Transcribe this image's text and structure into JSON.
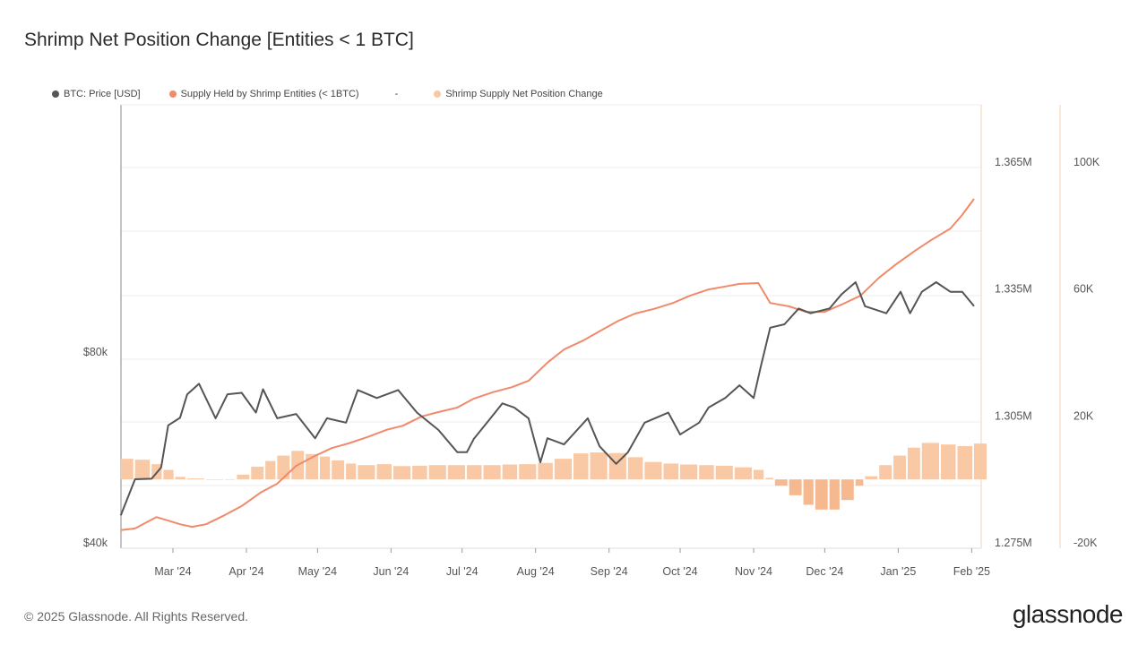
{
  "title": "Shrimp Net Position Change [Entities < 1 BTC]",
  "footer": "© 2025 Glassnode. All Rights Reserved.",
  "logo": "glassnode",
  "legend": [
    {
      "label": "BTC: Price [USD]",
      "color": "#555555"
    },
    {
      "label": "Supply Held by Shrimp Entities (< 1BTC)",
      "color": "#f08a6b"
    },
    {
      "label": "-",
      "color": ""
    },
    {
      "label": "Shrimp Supply Net Position Change",
      "color": "#f9c9a5"
    }
  ],
  "chart_data": {
    "type": "line",
    "title": "Shrimp Net Position Change [Entities < 1 BTC]",
    "x_ticks": [
      "Mar '24",
      "Apr '24",
      "May '24",
      "Jun '24",
      "Jul '24",
      "Aug '24",
      "Sep '24",
      "Oct '24",
      "Nov '24",
      "Dec '24",
      "Jan '25",
      "Feb '25"
    ],
    "x_tick_dates": [
      "2024-03-01",
      "2024-04-01",
      "2024-05-01",
      "2024-06-01",
      "2024-07-01",
      "2024-08-01",
      "2024-09-01",
      "2024-10-01",
      "2024-11-01",
      "2024-12-01",
      "2025-01-01",
      "2025-02-01"
    ],
    "xlim": [
      "2024-02-08",
      "2025-02-06"
    ],
    "grid": true,
    "legend_position": "top-left",
    "axes": {
      "price": {
        "side": "left",
        "scale": "log",
        "ticks": [
          "$40k",
          "$80k"
        ],
        "tick_values": [
          40000,
          80000
        ]
      },
      "supply": {
        "side": "right",
        "ticks": [
          "1.275M",
          "1.305M",
          "1.335M",
          "1.365M"
        ],
        "tick_values": [
          1275000,
          1305000,
          1335000,
          1365000
        ]
      },
      "net": {
        "side": "right-outer",
        "ticks": [
          "-20K",
          "20K",
          "60K",
          "100K"
        ],
        "tick_values": [
          -20000,
          20000,
          60000,
          100000
        ]
      }
    },
    "series": [
      {
        "name": "BTC: Price [USD]",
        "type": "line",
        "axis": "price",
        "color": "#555555",
        "points": [
          [
            "2024-02-08",
            44200
          ],
          [
            "2024-02-14",
            50400
          ],
          [
            "2024-02-21",
            50500
          ],
          [
            "2024-02-25",
            52600
          ],
          [
            "2024-02-28",
            61300
          ],
          [
            "2024-03-04",
            63000
          ],
          [
            "2024-03-07",
            68600
          ],
          [
            "2024-03-12",
            71300
          ],
          [
            "2024-03-19",
            62900
          ],
          [
            "2024-03-24",
            68600
          ],
          [
            "2024-03-30",
            69000
          ],
          [
            "2024-04-05",
            64200
          ],
          [
            "2024-04-08",
            69900
          ],
          [
            "2024-04-14",
            62900
          ],
          [
            "2024-04-22",
            63900
          ],
          [
            "2024-04-30",
            58500
          ],
          [
            "2024-05-05",
            62900
          ],
          [
            "2024-05-13",
            61900
          ],
          [
            "2024-05-18",
            69700
          ],
          [
            "2024-05-26",
            67700
          ],
          [
            "2024-06-04",
            69700
          ],
          [
            "2024-06-12",
            64200
          ],
          [
            "2024-06-21",
            60300
          ],
          [
            "2024-06-29",
            55600
          ],
          [
            "2024-07-03",
            55600
          ],
          [
            "2024-07-06",
            58400
          ],
          [
            "2024-07-13",
            62900
          ],
          [
            "2024-07-18",
            66400
          ],
          [
            "2024-07-23",
            65400
          ],
          [
            "2024-07-29",
            62900
          ],
          [
            "2024-08-03",
            53600
          ],
          [
            "2024-08-06",
            58500
          ],
          [
            "2024-08-13",
            57200
          ],
          [
            "2024-08-23",
            62900
          ],
          [
            "2024-08-28",
            56800
          ],
          [
            "2024-09-04",
            53300
          ],
          [
            "2024-09-09",
            55600
          ],
          [
            "2024-09-16",
            61900
          ],
          [
            "2024-09-26",
            64200
          ],
          [
            "2024-10-01",
            59300
          ],
          [
            "2024-10-09",
            61900
          ],
          [
            "2024-10-13",
            65400
          ],
          [
            "2024-10-20",
            67700
          ],
          [
            "2024-10-26",
            70900
          ],
          [
            "2024-11-01",
            67700
          ],
          [
            "2024-11-04",
            75900
          ],
          [
            "2024-11-08",
            87400
          ],
          [
            "2024-11-14",
            88500
          ],
          [
            "2024-11-20",
            93700
          ],
          [
            "2024-11-25",
            92100
          ],
          [
            "2024-12-03",
            93700
          ],
          [
            "2024-12-08",
            98600
          ],
          [
            "2024-12-14",
            103100
          ],
          [
            "2024-12-18",
            94500
          ],
          [
            "2024-12-27",
            92100
          ],
          [
            "2025-01-02",
            99600
          ],
          [
            "2025-01-06",
            92100
          ],
          [
            "2025-01-11",
            99600
          ],
          [
            "2025-01-17",
            103100
          ],
          [
            "2025-01-23",
            99600
          ],
          [
            "2025-01-28",
            99600
          ],
          [
            "2025-02-02",
            94500
          ]
        ]
      },
      {
        "name": "Supply Held by Shrimp Entities (< 1BTC)",
        "type": "line",
        "axis": "supply",
        "color": "#f08a6b",
        "points": [
          [
            "2024-02-08",
            1278000
          ],
          [
            "2024-02-14",
            1278400
          ],
          [
            "2024-02-23",
            1281100
          ],
          [
            "2024-02-29",
            1280100
          ],
          [
            "2024-03-04",
            1279400
          ],
          [
            "2024-03-09",
            1278800
          ],
          [
            "2024-03-15",
            1279400
          ],
          [
            "2024-03-23",
            1281600
          ],
          [
            "2024-03-30",
            1283700
          ],
          [
            "2024-04-07",
            1286900
          ],
          [
            "2024-04-14",
            1289000
          ],
          [
            "2024-04-22",
            1293200
          ],
          [
            "2024-04-29",
            1295300
          ],
          [
            "2024-05-07",
            1297400
          ],
          [
            "2024-05-14",
            1298500
          ],
          [
            "2024-05-22",
            1300000
          ],
          [
            "2024-05-30",
            1301700
          ],
          [
            "2024-06-06",
            1302700
          ],
          [
            "2024-06-14",
            1304900
          ],
          [
            "2024-06-21",
            1305900
          ],
          [
            "2024-06-29",
            1307000
          ],
          [
            "2024-07-06",
            1309100
          ],
          [
            "2024-07-14",
            1310600
          ],
          [
            "2024-07-22",
            1311800
          ],
          [
            "2024-07-29",
            1313300
          ],
          [
            "2024-08-06",
            1317600
          ],
          [
            "2024-08-13",
            1320700
          ],
          [
            "2024-08-21",
            1322800
          ],
          [
            "2024-08-28",
            1325000
          ],
          [
            "2024-09-05",
            1327500
          ],
          [
            "2024-09-12",
            1329200
          ],
          [
            "2024-09-20",
            1330300
          ],
          [
            "2024-09-28",
            1331700
          ],
          [
            "2024-10-05",
            1333400
          ],
          [
            "2024-10-13",
            1334900
          ],
          [
            "2024-10-20",
            1335600
          ],
          [
            "2024-10-26",
            1336200
          ],
          [
            "2024-11-03",
            1336400
          ],
          [
            "2024-11-08",
            1331700
          ],
          [
            "2024-11-16",
            1330900
          ],
          [
            "2024-11-23",
            1329600
          ],
          [
            "2024-12-01",
            1329600
          ],
          [
            "2024-12-08",
            1331300
          ],
          [
            "2024-12-16",
            1333400
          ],
          [
            "2024-12-24",
            1337700
          ],
          [
            "2024-12-31",
            1340800
          ],
          [
            "2025-01-08",
            1344000
          ],
          [
            "2025-01-15",
            1346600
          ],
          [
            "2025-01-23",
            1349300
          ],
          [
            "2025-01-28",
            1352500
          ],
          [
            "2025-02-02",
            1356300
          ]
        ]
      },
      {
        "name": "Shrimp Supply Net Position Change",
        "type": "bar",
        "axis": "net",
        "color": "#f9c9a5",
        "negative_color": "#f6b98f",
        "points": [
          [
            "2024-02-08",
            6500
          ],
          [
            "2024-02-14",
            6200
          ],
          [
            "2024-02-21",
            4800
          ],
          [
            "2024-02-26",
            3000
          ],
          [
            "2024-03-02",
            800
          ],
          [
            "2024-03-07",
            300
          ],
          [
            "2024-03-15",
            0
          ],
          [
            "2024-03-23",
            0
          ],
          [
            "2024-03-28",
            1500
          ],
          [
            "2024-04-03",
            4000
          ],
          [
            "2024-04-09",
            5800
          ],
          [
            "2024-04-14",
            7500
          ],
          [
            "2024-04-20",
            9000
          ],
          [
            "2024-04-26",
            8000
          ],
          [
            "2024-05-02",
            7200
          ],
          [
            "2024-05-07",
            6000
          ],
          [
            "2024-05-13",
            5000
          ],
          [
            "2024-05-18",
            4500
          ],
          [
            "2024-05-26",
            4800
          ],
          [
            "2024-06-02",
            4200
          ],
          [
            "2024-06-10",
            4300
          ],
          [
            "2024-06-17",
            4500
          ],
          [
            "2024-06-25",
            4500
          ],
          [
            "2024-07-03",
            4500
          ],
          [
            "2024-07-10",
            4500
          ],
          [
            "2024-07-18",
            4700
          ],
          [
            "2024-07-25",
            4800
          ],
          [
            "2024-08-02",
            5200
          ],
          [
            "2024-08-09",
            6500
          ],
          [
            "2024-08-17",
            8200
          ],
          [
            "2024-08-24",
            8500
          ],
          [
            "2024-09-01",
            8300
          ],
          [
            "2024-09-09",
            7000
          ],
          [
            "2024-09-16",
            5500
          ],
          [
            "2024-09-24",
            5000
          ],
          [
            "2024-10-01",
            4700
          ],
          [
            "2024-10-09",
            4500
          ],
          [
            "2024-10-16",
            4300
          ],
          [
            "2024-10-24",
            3800
          ],
          [
            "2024-11-01",
            3000
          ],
          [
            "2024-11-06",
            500
          ],
          [
            "2024-11-10",
            -2000
          ],
          [
            "2024-11-16",
            -5000
          ],
          [
            "2024-11-22",
            -8000
          ],
          [
            "2024-11-27",
            -9500
          ],
          [
            "2024-12-03",
            -9500
          ],
          [
            "2024-12-08",
            -6500
          ],
          [
            "2024-12-14",
            -2000
          ],
          [
            "2024-12-18",
            1000
          ],
          [
            "2024-12-24",
            4500
          ],
          [
            "2024-12-30",
            7500
          ],
          [
            "2025-01-05",
            10000
          ],
          [
            "2025-01-11",
            11500
          ],
          [
            "2025-01-19",
            11000
          ],
          [
            "2025-01-26",
            10500
          ],
          [
            "2025-02-02",
            11300
          ]
        ]
      }
    ]
  }
}
